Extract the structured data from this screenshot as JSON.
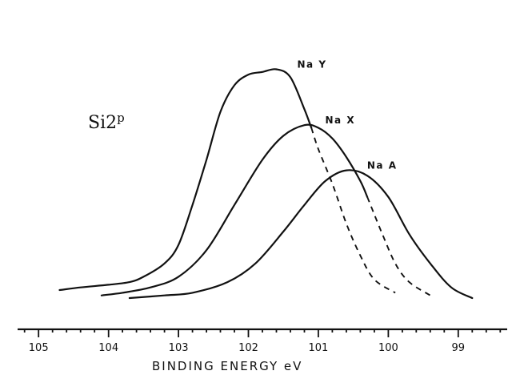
{
  "chart_data": {
    "type": "line",
    "title": "",
    "annotation": {
      "main": "Si2",
      "sup": "p"
    },
    "xlabel": "BINDING ENERGY  eV",
    "xlim": [
      105.3,
      98.3
    ],
    "x_reversed": true,
    "ylim": [
      0,
      100
    ],
    "xticks": [
      105,
      104,
      103,
      102,
      101,
      100,
      99
    ],
    "grid": false,
    "series": [
      {
        "name": "Na Y",
        "points": [
          [
            104.7,
            3
          ],
          [
            104.4,
            4
          ],
          [
            104.0,
            5
          ],
          [
            103.7,
            6
          ],
          [
            103.5,
            8
          ],
          [
            103.2,
            13
          ],
          [
            103.0,
            20
          ],
          [
            102.8,
            35
          ],
          [
            102.6,
            52
          ],
          [
            102.4,
            70
          ],
          [
            102.2,
            80
          ],
          [
            102.0,
            84
          ],
          [
            101.8,
            85
          ],
          [
            101.6,
            86
          ],
          [
            101.4,
            83
          ],
          [
            101.2,
            71
          ],
          [
            101.1,
            64
          ]
        ],
        "dashed_points": [
          [
            101.1,
            64
          ],
          [
            101.0,
            56
          ],
          [
            100.8,
            43
          ],
          [
            100.6,
            28
          ],
          [
            100.4,
            16
          ],
          [
            100.2,
            7
          ],
          [
            99.9,
            2
          ]
        ]
      },
      {
        "name": "Na X",
        "points": [
          [
            104.1,
            1
          ],
          [
            103.8,
            2
          ],
          [
            103.4,
            4
          ],
          [
            103.0,
            8
          ],
          [
            102.6,
            18
          ],
          [
            102.2,
            35
          ],
          [
            101.8,
            52
          ],
          [
            101.5,
            61
          ],
          [
            101.2,
            65
          ],
          [
            101.0,
            64
          ],
          [
            100.8,
            60
          ],
          [
            100.6,
            53
          ],
          [
            100.4,
            44
          ],
          [
            100.3,
            38
          ]
        ],
        "dashed_points": [
          [
            100.3,
            38
          ],
          [
            100.1,
            25
          ],
          [
            99.9,
            13
          ],
          [
            99.7,
            6
          ],
          [
            99.4,
            1
          ]
        ]
      },
      {
        "name": "Na A",
        "points": [
          [
            103.7,
            0
          ],
          [
            103.2,
            1
          ],
          [
            102.8,
            2
          ],
          [
            102.3,
            6
          ],
          [
            101.9,
            13
          ],
          [
            101.5,
            25
          ],
          [
            101.2,
            35
          ],
          [
            100.9,
            44
          ],
          [
            100.6,
            48
          ],
          [
            100.3,
            46
          ],
          [
            100.0,
            38
          ],
          [
            99.7,
            24
          ],
          [
            99.4,
            13
          ],
          [
            99.1,
            4
          ],
          [
            98.8,
            0
          ]
        ]
      }
    ]
  }
}
